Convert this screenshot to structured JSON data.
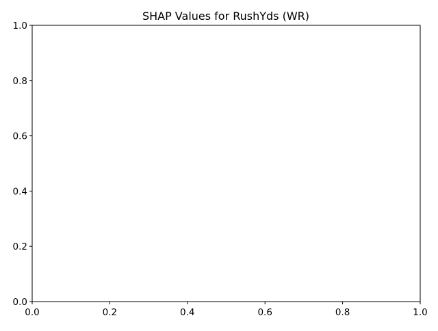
{
  "chart_data": {
    "type": "scatter",
    "title": "SHAP Values for RushYds (WR)",
    "xlabel": "",
    "ylabel": "",
    "xlim": [
      0.0,
      1.0
    ],
    "ylim": [
      0.0,
      1.0
    ],
    "x_ticks": [
      "0.0",
      "0.2",
      "0.4",
      "0.6",
      "0.8",
      "1.0"
    ],
    "y_ticks": [
      "0.0",
      "0.2",
      "0.4",
      "0.6",
      "0.8",
      "1.0"
    ],
    "grid": false,
    "legend": "none",
    "series": []
  }
}
